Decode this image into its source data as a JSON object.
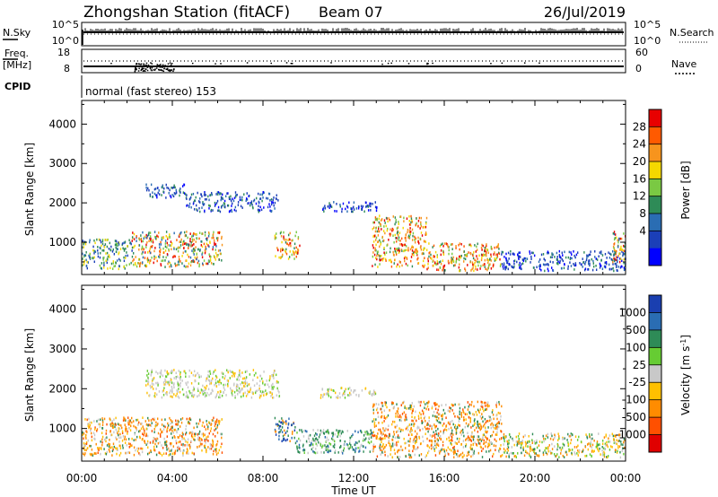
{
  "header": {
    "station": "Zhongshan Station (fitACF)",
    "beam": "Beam 07",
    "date": "26/Jul/2019"
  },
  "sky_panel": {
    "left_label": "N.Sky",
    "right_label": "N.Search",
    "left_ticks": [
      "10^5",
      "10^0"
    ],
    "right_ticks": [
      "10^5",
      "10^0"
    ]
  },
  "freq_panel": {
    "left_label": "Freq.",
    "left_unit": "[MHz]",
    "right_label": "Nave",
    "left_ticks": [
      "18",
      "8"
    ],
    "right_ticks": [
      "60",
      "0"
    ]
  },
  "cpid": {
    "label": "CPID",
    "value": "normal (fast stereo) 153"
  },
  "power_colorbar": {
    "label": "Power [dB]",
    "ticks": [
      "28",
      "24",
      "20",
      "16",
      "12",
      "8",
      "4"
    ],
    "colors": [
      "#e80000",
      "#ff5a00",
      "#f7941d",
      "#f5d800",
      "#7ac943",
      "#2e8b57",
      "#2a6db3",
      "#1b3fb8",
      "#0000ff"
    ]
  },
  "velocity_colorbar": {
    "label": "Velocity [m s",
    "label_sup": "-1",
    "label_end": "]",
    "ticks": [
      "1000",
      "500",
      "100",
      "25",
      "-25",
      "-100",
      "-500",
      "-1000"
    ],
    "colors": [
      "#1a3fb0",
      "#2a6db3",
      "#2e8b57",
      "#66cc33",
      "#c8c8c8",
      "#ffc000",
      "#ff8c00",
      "#ff5000",
      "#e00000"
    ]
  },
  "chart_data": [
    {
      "type": "heatmap",
      "name_shown": "Power [dB]",
      "ylabel": "Slant Range [km]",
      "yticks": [
        1000,
        2000,
        3000,
        4000
      ],
      "ylim": [
        180,
        4600
      ],
      "xlim_hours": [
        0,
        24
      ],
      "xticks": [
        "00:00",
        "04:00",
        "08:00",
        "12:00",
        "16:00",
        "20:00",
        "00:00"
      ],
      "regions": [
        {
          "t0": 0.0,
          "t1": 2.2,
          "r0": 350,
          "r1": 1100,
          "level": "low-mid"
        },
        {
          "t0": 2.2,
          "t1": 6.2,
          "r0": 400,
          "r1": 1300,
          "level": "mid-high"
        },
        {
          "t0": 2.8,
          "t1": 4.6,
          "r0": 2150,
          "r1": 2500,
          "level": "low"
        },
        {
          "t0": 4.6,
          "t1": 8.7,
          "r0": 1800,
          "r1": 2300,
          "level": "low"
        },
        {
          "t0": 8.5,
          "t1": 9.6,
          "r0": 600,
          "r1": 1300,
          "level": "high"
        },
        {
          "t0": 10.5,
          "t1": 13.0,
          "r0": 1800,
          "r1": 2050,
          "level": "low"
        },
        {
          "t0": 12.8,
          "t1": 15.2,
          "r0": 400,
          "r1": 1700,
          "level": "high"
        },
        {
          "t0": 15.2,
          "t1": 18.5,
          "r0": 300,
          "r1": 1000,
          "level": "high"
        },
        {
          "t0": 18.5,
          "t1": 24.0,
          "r0": 300,
          "r1": 800,
          "level": "low"
        },
        {
          "t0": 23.4,
          "t1": 24.0,
          "r0": 500,
          "r1": 1300,
          "level": "mid-high"
        }
      ]
    },
    {
      "type": "heatmap",
      "name_shown": "Velocity [m s-1]",
      "ylabel": "Slant Range [km]",
      "yticks": [
        1000,
        2000,
        3000,
        4000
      ],
      "ylim": [
        180,
        4600
      ],
      "xlim_hours": [
        0,
        24
      ],
      "xticks": [
        "00:00",
        "04:00",
        "08:00",
        "12:00",
        "16:00",
        "20:00",
        "00:00"
      ],
      "xlabel": "Time UT",
      "regions": [
        {
          "t0": 0.0,
          "t1": 6.2,
          "r0": 350,
          "r1": 1300,
          "velocity": "-100 to -500"
        },
        {
          "t0": 2.8,
          "t1": 8.7,
          "r0": 1800,
          "r1": 2500,
          "velocity": "-25 to 25"
        },
        {
          "t0": 8.5,
          "t1": 9.4,
          "r0": 700,
          "r1": 1300,
          "velocity": "500 to 1000"
        },
        {
          "t0": 9.4,
          "t1": 12.8,
          "r0": 400,
          "r1": 1000,
          "velocity": "100 to 500"
        },
        {
          "t0": 10.5,
          "t1": 13.0,
          "r0": 1800,
          "r1": 2050,
          "velocity": "-25 to 25"
        },
        {
          "t0": 12.8,
          "t1": 18.5,
          "r0": 300,
          "r1": 1700,
          "velocity": "-100 to -500"
        },
        {
          "t0": 18.5,
          "t1": 24.0,
          "r0": 300,
          "r1": 900,
          "velocity": "-100 to 100"
        }
      ]
    }
  ]
}
